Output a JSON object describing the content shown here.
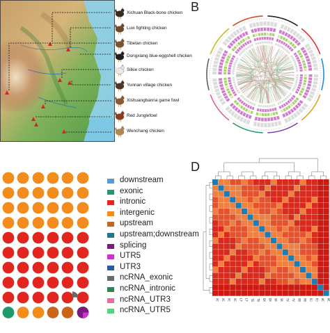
{
  "panel_letters": {
    "b": "B",
    "d": "D"
  },
  "breeds": [
    {
      "label": "Xichuan Black-bone chicken",
      "color": "#3a2b20"
    },
    {
      "label": "Luxi fighting chicken",
      "color": "#6a4a2a"
    },
    {
      "label": "Tibetan chicken",
      "color": "#7b5434"
    },
    {
      "label": "Dongxiang blue-eggshell chicken",
      "color": "#1e1e1e"
    },
    {
      "label": "Silkie chicken",
      "color": "#e8e8e8"
    },
    {
      "label": "Yunnan village chicken",
      "color": "#4a3826"
    },
    {
      "label": "Xishuangbanna game fowl",
      "color": "#8a5a30"
    },
    {
      "label": "Red Junglefowl",
      "color": "#8b3a1a"
    },
    {
      "label": "Wenchang chicken",
      "color": "#b08a50"
    }
  ],
  "legend": [
    {
      "label": "downstream",
      "color": "#5b9bd5"
    },
    {
      "label": "exonic",
      "color": "#1f9a6a"
    },
    {
      "label": "intronic",
      "color": "#e0261e"
    },
    {
      "label": "intergenic",
      "color": "#f28c1d"
    },
    {
      "label": "upstream",
      "color": "#c8651b"
    },
    {
      "label": "upstream;downstream",
      "color": "#1a7a8a"
    },
    {
      "label": "splicing",
      "color": "#7a1a7a"
    },
    {
      "label": "UTR5",
      "color": "#cc33cc"
    },
    {
      "label": "UTR3",
      "color": "#2a5aa0"
    },
    {
      "label": "ncRNA_exonic",
      "color": "#6a6a6a"
    },
    {
      "label": "ncRNA_intronic",
      "color": "#2a8a4a"
    },
    {
      "label": "ncRNA_UTR3",
      "color": "#f06aa0"
    },
    {
      "label": "ncRNA_UTR5",
      "color": "#5ad080"
    }
  ],
  "dot_grid": {
    "rows": [
      [
        "intergenic",
        "intergenic",
        "intergenic",
        "intergenic",
        "intergenic",
        "intergenic"
      ],
      [
        "intergenic",
        "intergenic",
        "intergenic",
        "intergenic",
        "intergenic",
        "intergenic"
      ],
      [
        "intergenic",
        "intergenic",
        "intergenic",
        "intergenic",
        "intergenic",
        "intergenic"
      ],
      [
        "intergenic",
        "intergenic",
        "intergenic",
        "intergenic",
        "intergenic",
        "intergenic"
      ],
      [
        "intronic",
        "intronic",
        "intronic",
        "intronic",
        "intronic",
        "intronic"
      ],
      [
        "intronic",
        "intronic",
        "intronic",
        "intronic",
        "intronic",
        "intronic"
      ],
      [
        "intronic",
        "intronic",
        "intronic",
        "intronic",
        "intronic",
        "intronic"
      ],
      [
        "intronic",
        "intronic",
        "intronic",
        "intronic",
        "intronic",
        "intronic"
      ],
      [
        "intronic",
        "intronic",
        "intronic",
        "intronic",
        "intronic",
        "intronic"
      ],
      [
        "exonic",
        "intergenic",
        "intergenic",
        "upstream",
        "upstream",
        "splicing"
      ]
    ]
  },
  "heatmap": {
    "size": 20,
    "labels": [
      "XC",
      "XC",
      "XC",
      "XC",
      "LF",
      "LF",
      "TB",
      "TB",
      "DX",
      "DX",
      "SK",
      "SK",
      "YV",
      "YV",
      "XB",
      "XB",
      "RJ",
      "RJ",
      "WC",
      "WC"
    ],
    "colors": {
      "diag": "#1f7bb4",
      "high": "#f08040",
      "mid": "#e5532e",
      "low": "#d92a1e",
      "bottom": "#cc1a12"
    }
  },
  "circos": {
    "ring_colors": [
      "#d8d8d8",
      "#cc6fc8",
      "#9ccf5a",
      "#d8d8d8"
    ],
    "outer_segments": [
      "#222222",
      "#e03030",
      "#2a8ad0",
      "#e0a020",
      "#8040b0",
      "#20a060",
      "#e06090",
      "#606060",
      "#c0c020",
      "#d05020"
    ]
  }
}
